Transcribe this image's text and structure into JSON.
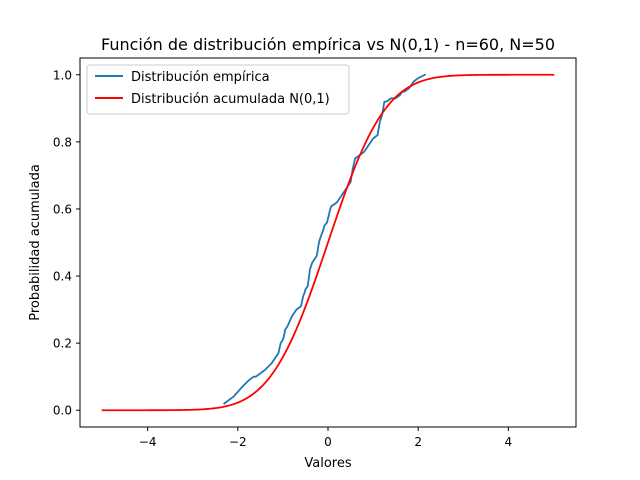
{
  "chart_data": {
    "type": "line",
    "title": "Función de distribución empírica vs N(0,1) - n=60, N=50",
    "xlabel": "Valores",
    "ylabel": "Probabilidad acumulada",
    "xlim": [
      -5.5,
      5.5
    ],
    "ylim": [
      -0.05,
      1.05
    ],
    "xticks": [
      -4,
      -2,
      0,
      2,
      4
    ],
    "xtick_labels": [
      "−4",
      "−2",
      "0",
      "2",
      "4"
    ],
    "yticks": [
      0.0,
      0.2,
      0.4,
      0.6,
      0.8,
      1.0
    ],
    "ytick_labels": [
      "0.0",
      "0.2",
      "0.4",
      "0.6",
      "0.8",
      "1.0"
    ],
    "grid": false,
    "legend_position": "top-left",
    "series": [
      {
        "name": "Distribución empírica",
        "color": "#1f77b4",
        "x": [
          -2.3,
          -2.1,
          -1.9,
          -1.75,
          -1.65,
          -1.6,
          -1.4,
          -1.25,
          -1.1,
          -1.05,
          -1.0,
          -0.98,
          -0.95,
          -0.9,
          -0.8,
          -0.7,
          -0.6,
          -0.55,
          -0.52,
          -0.5,
          -0.45,
          -0.4,
          -0.35,
          -0.25,
          -0.2,
          -0.18,
          -0.1,
          -0.08,
          -0.02,
          0.05,
          0.08,
          0.1,
          0.2,
          0.3,
          0.4,
          0.5,
          0.55,
          0.6,
          0.7,
          0.8,
          0.85,
          0.95,
          1.0,
          1.1,
          1.15,
          1.2,
          1.25,
          1.3,
          1.4,
          1.5,
          1.6,
          1.65,
          1.7,
          1.8,
          1.9,
          2.0,
          2.15
        ],
        "y": [
          0.02,
          0.04,
          0.07,
          0.09,
          0.1,
          0.1,
          0.12,
          0.14,
          0.17,
          0.2,
          0.21,
          0.22,
          0.24,
          0.25,
          0.28,
          0.3,
          0.31,
          0.34,
          0.35,
          0.36,
          0.37,
          0.42,
          0.44,
          0.46,
          0.5,
          0.51,
          0.54,
          0.55,
          0.56,
          0.6,
          0.61,
          0.61,
          0.62,
          0.64,
          0.66,
          0.68,
          0.72,
          0.75,
          0.76,
          0.77,
          0.78,
          0.8,
          0.81,
          0.82,
          0.86,
          0.88,
          0.92,
          0.92,
          0.93,
          0.93,
          0.94,
          0.95,
          0.95,
          0.96,
          0.98,
          0.99,
          1.0
        ]
      },
      {
        "name": "Distribución acumulada N(0,1)",
        "color": "#ff0000",
        "function": "normal_cdf",
        "x_range": [
          -5,
          5
        ]
      }
    ]
  }
}
